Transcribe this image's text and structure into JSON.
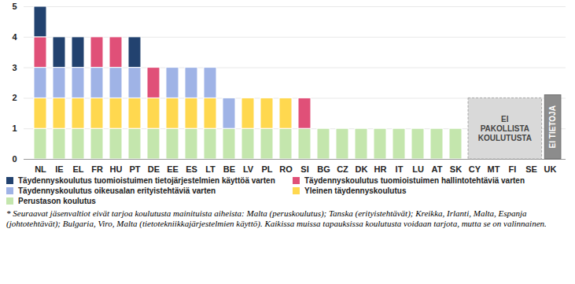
{
  "chart_data": {
    "type": "bar",
    "stacked": true,
    "categories": [
      "NL",
      "IE",
      "EL",
      "FR",
      "HU",
      "PT",
      "DE",
      "EE",
      "ES",
      "LT",
      "BE",
      "LV",
      "PL",
      "RO",
      "SI",
      "BG",
      "CZ",
      "DK",
      "HR",
      "IT",
      "LU",
      "AT",
      "SK",
      "CY",
      "MT",
      "FI",
      "SE",
      "UK"
    ],
    "series": [
      {
        "name": "Perustason koulutus",
        "color": "#c4e6ad",
        "values": [
          1,
          1,
          1,
          1,
          1,
          1,
          1,
          1,
          1,
          1,
          1,
          1,
          1,
          1,
          1,
          1,
          1,
          1,
          1,
          1,
          1,
          1,
          1,
          0,
          0,
          0,
          0,
          0
        ]
      },
      {
        "name": "Yleinen täydennyskoulutus",
        "color": "#ffd84f",
        "values": [
          1,
          1,
          1,
          1,
          1,
          1,
          1,
          1,
          1,
          1,
          0,
          1,
          1,
          1,
          0,
          0,
          0,
          0,
          0,
          0,
          0,
          0,
          0,
          0,
          0,
          0,
          0,
          0
        ]
      },
      {
        "name": "Täydennyskoulutus oikeusalan erityistehtäviä varten",
        "color": "#9fb3e6",
        "values": [
          1,
          1,
          1,
          1,
          1,
          1,
          0,
          1,
          1,
          1,
          1,
          0,
          0,
          0,
          0,
          0,
          0,
          0,
          0,
          0,
          0,
          0,
          0,
          0,
          0,
          0,
          0,
          0
        ]
      },
      {
        "name": "Täydennyskoulutus tuomioistuimen hallintotehtäviä varten",
        "color": "#e05078",
        "values": [
          1,
          0,
          0,
          1,
          1,
          0,
          1,
          0,
          0,
          0,
          0,
          0,
          0,
          0,
          1,
          0,
          0,
          0,
          0,
          0,
          0,
          0,
          0,
          0,
          0,
          0,
          0,
          0
        ]
      },
      {
        "name": "Täydennyskoulutus tuomioistuimen tietojärjestelmien käyttöä varten",
        "color": "#22426f",
        "values": [
          1,
          1,
          1,
          0,
          0,
          1,
          0,
          0,
          0,
          0,
          0,
          0,
          0,
          0,
          0,
          0,
          0,
          0,
          0,
          0,
          0,
          0,
          0,
          0,
          0,
          0,
          0,
          0
        ]
      }
    ],
    "ylim": [
      0,
      5
    ],
    "yticks": [
      0,
      1,
      2,
      3,
      4,
      5
    ],
    "grid": true,
    "legend": "bottom",
    "annotations": [
      {
        "text": "EI PAKOLLISTA KOULUTUSTA",
        "categories": [
          "CY",
          "MT",
          "FI",
          "SE"
        ]
      },
      {
        "text": "EI TIETOJA",
        "categories": [
          "UK"
        ]
      }
    ],
    "footnote": "* Seuraavat jäsenvaltiot eivät tarjoa koulutusta mainituista aiheista: Malta (peruskoulutus); Tanska (erityistehtävät); Kreikka, Irlanti, Malta, Espanja (johtotehtävät); Bulgaria, Viro, Malta (tietotekniikkajärjestelmien käyttö). Kaikissa muissa tapauksissa koulutusta voidaan tarjota, mutta se on valinnainen."
  }
}
